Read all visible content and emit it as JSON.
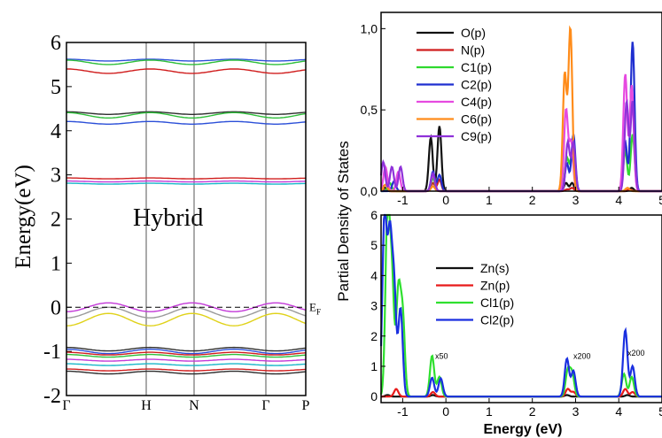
{
  "chart_data": [
    {
      "type": "line",
      "panel": "band-structure",
      "ylabel": "Energy(eV)",
      "annotation": "Hybrid",
      "fermi_label": "E",
      "fermi_sub": "F",
      "ylim": [
        -2,
        6
      ],
      "yticks": [
        "-2",
        "-1",
        "0",
        "1",
        "2",
        "3",
        "4",
        "5",
        "6"
      ],
      "kpoints": [
        "Γ",
        "H",
        "N",
        "Γ",
        "P"
      ],
      "kpoint_positions": [
        0,
        1,
        1.6,
        2.5,
        3.0
      ],
      "fermi_level": 0,
      "grid": false,
      "bands": [
        {
          "color": "#2b4fd8",
          "base": 5.6,
          "amp": 0.02
        },
        {
          "color": "#2fbf3b",
          "base": 5.55,
          "amp": 0.05
        },
        {
          "color": "#d01d1d",
          "base": 5.35,
          "amp": 0.05
        },
        {
          "color": "#2e2e2e",
          "base": 4.4,
          "amp": 0.03
        },
        {
          "color": "#2fbf3b",
          "base": 4.35,
          "amp": 0.06
        },
        {
          "color": "#2b4fd8",
          "base": 4.18,
          "amp": 0.03
        },
        {
          "color": "#d01d1d",
          "base": 2.92,
          "amp": 0.01
        },
        {
          "color": "#c33ad8",
          "base": 2.85,
          "amp": 0.01
        },
        {
          "color": "#19b7c9",
          "base": 2.8,
          "amp": 0.01
        },
        {
          "color": "#c33ad8",
          "base": 0.0,
          "amp": -0.1
        },
        {
          "color": "#9a9a9a",
          "base": -0.12,
          "amp": -0.12
        },
        {
          "color": "#e0d21a",
          "base": -0.28,
          "amp": -0.14
        },
        {
          "color": "#2e2e2e",
          "base": -0.95,
          "amp": 0.04
        },
        {
          "color": "#2b4fd8",
          "base": -1.0,
          "amp": 0.05
        },
        {
          "color": "#d01d1d",
          "base": -1.05,
          "amp": 0.03
        },
        {
          "color": "#2fbf3b",
          "base": -1.1,
          "amp": 0.03
        },
        {
          "color": "#c33ad8",
          "base": -1.2,
          "amp": 0.02
        },
        {
          "color": "#19b7c9",
          "base": -1.3,
          "amp": 0.02
        },
        {
          "color": "#d01d1d",
          "base": -1.42,
          "amp": 0.02
        },
        {
          "color": "#2e2e2e",
          "base": -1.48,
          "amp": 0.03
        }
      ]
    },
    {
      "type": "line",
      "panel": "pdos-top",
      "ylabel": "Partial Density of States",
      "xlim": [
        -1.5,
        5
      ],
      "ylim": [
        0,
        1.1
      ],
      "yticks": [
        "0,0",
        "0,5",
        "1,0"
      ],
      "xticks": [
        "-1",
        "0",
        "1",
        "2",
        "3",
        "4",
        "5"
      ],
      "legend_position": "top-center",
      "series": [
        {
          "name": "O(p)",
          "color": "#111111",
          "peaks": [
            [
              -1.45,
              0.03
            ],
            [
              -0.35,
              0.33
            ],
            [
              -0.15,
              0.4
            ],
            [
              2.78,
              0.05
            ],
            [
              2.92,
              0.05
            ],
            [
              4.3,
              0.02
            ]
          ]
        },
        {
          "name": "N(p)",
          "color": "#d01d1d",
          "peaks": [
            [
              -1.4,
              0.01
            ],
            [
              -0.3,
              0.05
            ],
            [
              -0.15,
              0.07
            ],
            [
              2.8,
              0.01
            ],
            [
              2.92,
              0.02
            ],
            [
              4.25,
              0.01
            ]
          ]
        },
        {
          "name": "C1(p)",
          "color": "#2fd92f",
          "peaks": [
            [
              -1.3,
              0.05
            ],
            [
              -0.3,
              0.08
            ],
            [
              2.8,
              0.2
            ],
            [
              2.92,
              0.22
            ],
            [
              4.15,
              0.25
            ],
            [
              4.32,
              0.35
            ]
          ]
        },
        {
          "name": "C2(p)",
          "color": "#1f2fd0",
          "peaks": [
            [
              -1.2,
              0.06
            ],
            [
              -0.3,
              0.12
            ],
            [
              -0.15,
              0.1
            ],
            [
              2.8,
              0.17
            ],
            [
              2.95,
              0.35
            ],
            [
              4.15,
              0.3
            ],
            [
              4.32,
              0.92
            ]
          ]
        },
        {
          "name": "C4(p)",
          "color": "#e64ae0",
          "peaks": [
            [
              -1.4,
              0.15
            ],
            [
              -1.1,
              0.12
            ],
            [
              -0.3,
              0.1
            ],
            [
              2.78,
              0.5
            ],
            [
              2.9,
              0.3
            ],
            [
              4.15,
              0.72
            ],
            [
              4.3,
              0.65
            ]
          ]
        },
        {
          "name": "C6(p)",
          "color": "#ff8c1a",
          "peaks": [
            [
              -1.4,
              0.04
            ],
            [
              -0.3,
              0.03
            ],
            [
              2.75,
              0.72
            ],
            [
              2.88,
              1.0
            ],
            [
              4.2,
              0.02
            ]
          ]
        },
        {
          "name": "C9(p)",
          "color": "#8f32d9",
          "peaks": [
            [
              -1.45,
              0.18
            ],
            [
              -1.25,
              0.15
            ],
            [
              -1.05,
              0.15
            ],
            [
              -0.3,
              0.11
            ],
            [
              2.82,
              0.3
            ],
            [
              2.95,
              0.3
            ],
            [
              4.18,
              0.55
            ],
            [
              4.32,
              0.55
            ]
          ]
        }
      ]
    },
    {
      "type": "line",
      "panel": "pdos-bottom",
      "xlabel": "Energy (eV)",
      "xlim": [
        -1.5,
        5
      ],
      "ylim": [
        -0.2,
        6
      ],
      "yticks": [
        "0",
        "1",
        "2",
        "3",
        "4",
        "5",
        "6"
      ],
      "xticks": [
        "-1",
        "0",
        "1",
        "2",
        "3",
        "4",
        "5"
      ],
      "legend_position": "center",
      "annotations": [
        {
          "text": "x50",
          "x": -0.25,
          "y": 1.25
        },
        {
          "text": "x200",
          "x": 2.95,
          "y": 1.25
        },
        {
          "text": "x200",
          "x": 4.2,
          "y": 1.35
        }
      ],
      "series": [
        {
          "name": "Zn(s)",
          "color": "#111111",
          "peaks": [
            [
              -1.35,
              0.05
            ],
            [
              -0.3,
              0.05
            ],
            [
              2.8,
              0.05
            ],
            [
              4.2,
              0.05
            ]
          ]
        },
        {
          "name": "Zn(p)",
          "color": "#e81a1a",
          "peaks": [
            [
              -1.15,
              0.25
            ],
            [
              -0.3,
              0.15
            ],
            [
              2.82,
              0.25
            ],
            [
              2.95,
              0.15
            ],
            [
              4.15,
              0.25
            ],
            [
              4.32,
              0.15
            ]
          ]
        },
        {
          "name": "Cl1(p)",
          "color": "#2fe02f",
          "peaks": [
            [
              -1.35,
              6.0
            ],
            [
              -1.25,
              3.8
            ],
            [
              -1.1,
              3.4
            ],
            [
              -1.0,
              2.6
            ],
            [
              -0.32,
              1.35
            ],
            [
              -0.15,
              0.65
            ],
            [
              2.82,
              0.85
            ],
            [
              2.92,
              0.75
            ],
            [
              4.12,
              0.75
            ],
            [
              4.3,
              0.65
            ]
          ]
        },
        {
          "name": "Cl2(p)",
          "color": "#1a2fe0",
          "peaks": [
            [
              -1.42,
              6.0
            ],
            [
              -1.3,
              5.0
            ],
            [
              -1.2,
              3.5
            ],
            [
              -1.05,
              2.9
            ],
            [
              -0.32,
              0.62
            ],
            [
              -0.12,
              0.6
            ],
            [
              2.8,
              1.25
            ],
            [
              2.95,
              0.85
            ],
            [
              4.15,
              2.2
            ],
            [
              4.32,
              1.0
            ]
          ]
        }
      ]
    }
  ]
}
